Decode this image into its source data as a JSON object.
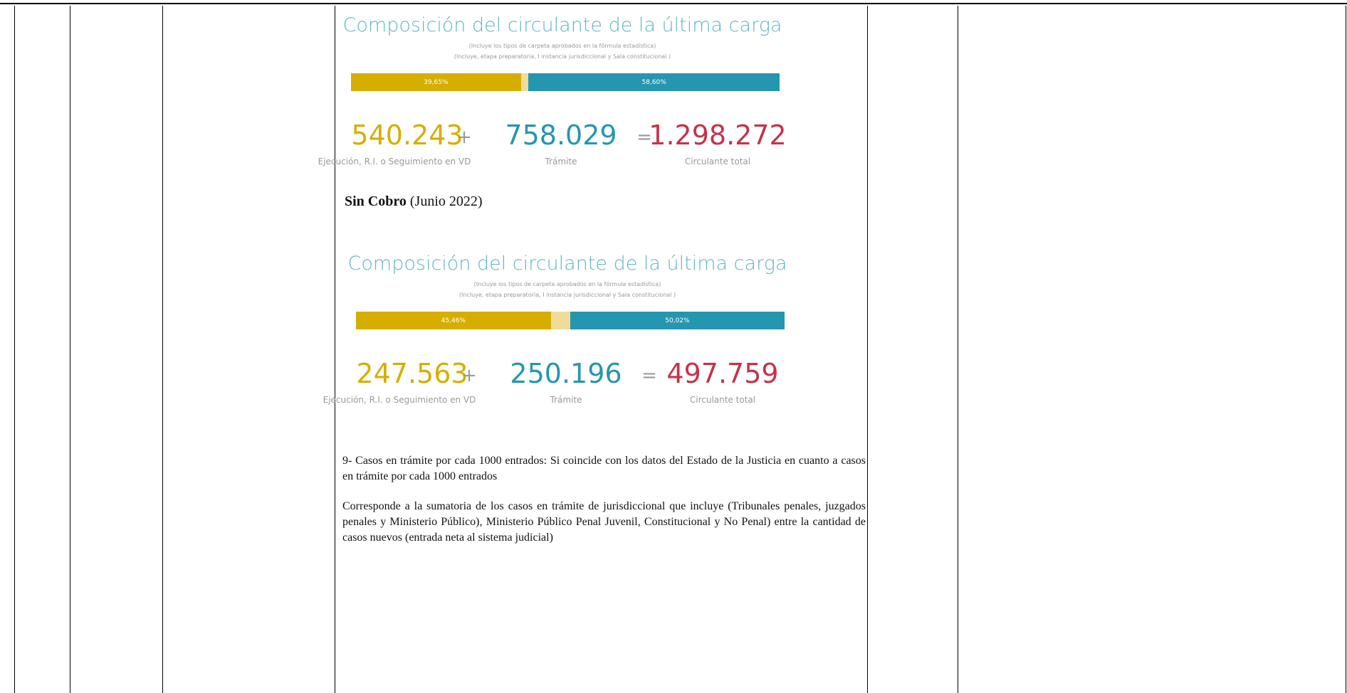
{
  "infographics": [
    {
      "title": "Composición del circulante de la última carga",
      "subtitles": [
        "(Incluye los tipos de carpeta aprobados en la fórmula estadística)",
        "(Incluye, etapa preparatoria, I instancia jurisdiccional y Sala constitucional )"
      ],
      "bar": [
        {
          "value": 39.65,
          "label": "39,65%"
        },
        {
          "value": 58.6,
          "label": "58,60%"
        }
      ],
      "figures": [
        {
          "number": "540.243",
          "caption": "Ejecución, R.I. o Seguimiento en VD"
        },
        {
          "number": "758.029",
          "caption": "Trámite"
        },
        {
          "number": "1.298.272",
          "caption": "Circulante total"
        }
      ],
      "operators": [
        "+",
        "="
      ]
    },
    {
      "title": "Composición del circulante de la última carga",
      "subtitles": [
        "(Incluye los tipos de carpeta aprobados en la fórmula estadística)",
        "(Incluye, etapa preparatoria, I instancia jurisdiccional y Sala constitucional )"
      ],
      "bar": [
        {
          "value": 45.46,
          "label": "45,46%"
        },
        {
          "value": 50.02,
          "label": "50,02%"
        }
      ],
      "figures": [
        {
          "number": "247.563",
          "caption": "Ejecución, R.I. o Seguimiento en VD"
        },
        {
          "number": "250.196",
          "caption": "Trámite"
        },
        {
          "number": "497.759",
          "caption": "Circulante total"
        }
      ],
      "operators": [
        "+",
        "="
      ]
    }
  ],
  "section": {
    "heading": "Sin Cobro",
    "note": "(Junio 2022)"
  },
  "paragraphs": [
    "9- Casos en trámite por cada 1000 entrados: Si coincide con los datos del  Estado de la Justicia en cuanto a casos en trámite  por cada 1000 entrados",
    "Corresponde a la sumatoria de los casos en trámite de jurisdiccional que incluye (Tribunales penales, juzgados penales y Ministerio Público), Ministerio Público Penal Juvenil, Constitucional y No Penal) entre la cantidad de casos nuevos (entrada neta al sistema judicial)"
  ]
}
